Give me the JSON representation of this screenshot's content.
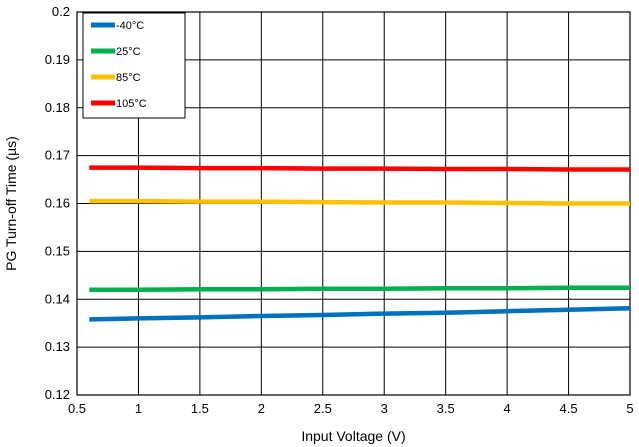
{
  "chart_data": {
    "type": "line",
    "xlabel": "Input Voltage (V)",
    "ylabel": "PG Turn-off Time (µs)",
    "xlim": [
      0.5,
      5
    ],
    "ylim": [
      0.12,
      0.2
    ],
    "x_ticks": [
      "0.5",
      "1",
      "1.5",
      "2",
      "2.5",
      "3",
      "3.5",
      "4",
      "4.5",
      "5"
    ],
    "y_ticks": [
      "0.12",
      "0.13",
      "0.14",
      "0.15",
      "0.16",
      "0.17",
      "0.18",
      "0.19",
      "0.2"
    ],
    "grid": true,
    "legend_position": "top-left",
    "series": [
      {
        "name": "-40°C",
        "color": "#0070C0",
        "x": [
          0.6,
          1,
          1.5,
          2,
          2.5,
          3,
          3.5,
          4,
          4.5,
          5
        ],
        "y": [
          0.1358,
          0.136,
          0.1362,
          0.1365,
          0.1367,
          0.137,
          0.1372,
          0.1375,
          0.1378,
          0.1381
        ]
      },
      {
        "name": "25°C",
        "color": "#00B050",
        "x": [
          0.6,
          1,
          1.5,
          2,
          2.5,
          3,
          3.5,
          4,
          4.5,
          5
        ],
        "y": [
          0.142,
          0.142,
          0.1421,
          0.1421,
          0.1422,
          0.1422,
          0.1423,
          0.1423,
          0.1424,
          0.1424
        ]
      },
      {
        "name": "85°C",
        "color": "#FFC000",
        "x": [
          0.6,
          1,
          1.5,
          2,
          2.5,
          3,
          3.5,
          4,
          4.5,
          5
        ],
        "y": [
          0.1605,
          0.1605,
          0.1604,
          0.1604,
          0.1603,
          0.1602,
          0.1602,
          0.1601,
          0.16,
          0.16
        ]
      },
      {
        "name": "105°C",
        "color": "#FF0000",
        "x": [
          0.6,
          1,
          1.5,
          2,
          2.5,
          3,
          3.5,
          4,
          4.5,
          5
        ],
        "y": [
          0.1675,
          0.1675,
          0.1674,
          0.1674,
          0.1673,
          0.1673,
          0.1672,
          0.1672,
          0.1671,
          0.1671
        ]
      }
    ]
  }
}
